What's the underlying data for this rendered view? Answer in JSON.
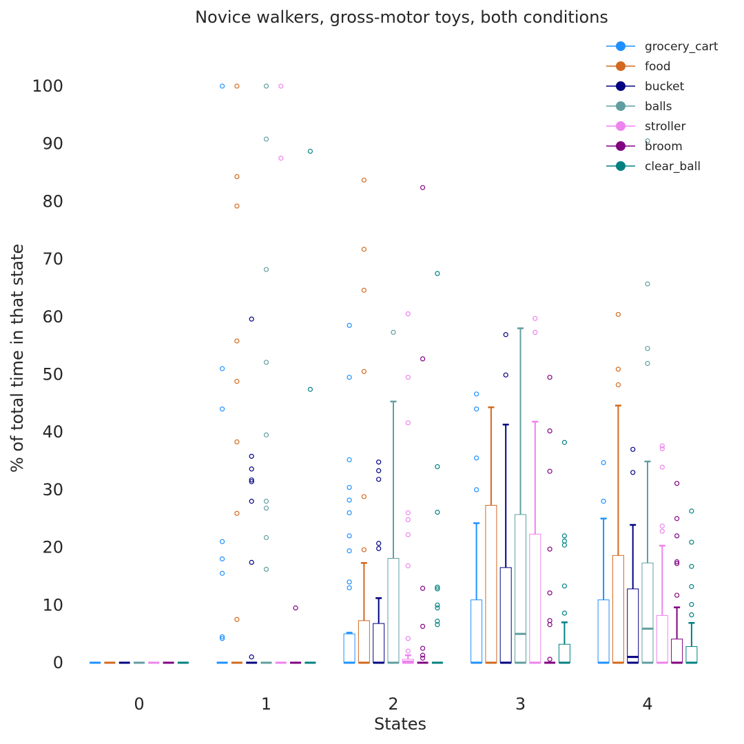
{
  "chart_data": {
    "type": "box",
    "title": "Novice walkers, gross-motor toys, both conditions",
    "xlabel": "States",
    "ylabel": "% of total time in that state",
    "categories": [
      "0",
      "1",
      "2",
      "3",
      "4"
    ],
    "ylim": [
      -5,
      107
    ],
    "yticks": [
      0,
      10,
      20,
      30,
      40,
      50,
      60,
      70,
      80,
      90,
      100
    ],
    "grid": false,
    "legend_position": "top-right",
    "series": [
      {
        "name": "grocery_cart",
        "color": "#1e90ff",
        "boxes": [
          {
            "q1": 0,
            "median": 0,
            "q3": 0,
            "whislo": 0,
            "whishi": 0,
            "fliers": []
          },
          {
            "q1": 0,
            "median": 0,
            "q3": 0,
            "whislo": 0,
            "whishi": 0,
            "fliers": [
              100,
              51,
              44,
              21,
              18,
              15.5,
              4.5,
              4.2
            ]
          },
          {
            "q1": 0,
            "median": 0,
            "q3": 5,
            "whislo": 0,
            "whishi": 5.2,
            "fliers": [
              58.5,
              49.5,
              35.2,
              30.4,
              28.2,
              26,
              22,
              19.4,
              14,
              13
            ]
          },
          {
            "q1": 0,
            "median": 0,
            "q3": 10.9,
            "whislo": 0,
            "whishi": 24.2,
            "fliers": [
              46.6,
              44,
              35.5,
              30
            ]
          },
          {
            "q1": 0,
            "median": 0,
            "q3": 10.9,
            "whislo": 0,
            "whishi": 25,
            "fliers": [
              34.7,
              28
            ]
          }
        ]
      },
      {
        "name": "food",
        "color": "#d2691e",
        "boxes": [
          {
            "q1": 0,
            "median": 0,
            "q3": 0,
            "whislo": 0,
            "whishi": 0,
            "fliers": []
          },
          {
            "q1": 0,
            "median": 0,
            "q3": 0,
            "whislo": 0,
            "whishi": 0,
            "fliers": [
              100,
              84.3,
              79.2,
              55.8,
              48.8,
              38.3,
              25.9,
              7.5
            ]
          },
          {
            "q1": 0,
            "median": 0,
            "q3": 7.3,
            "whislo": 0,
            "whishi": 17.3,
            "fliers": [
              83.7,
              71.7,
              64.6,
              50.5,
              28.8,
              19.6
            ]
          },
          {
            "q1": 0,
            "median": 0,
            "q3": 27.3,
            "whislo": 0,
            "whishi": 44.3,
            "fliers": []
          },
          {
            "q1": 0,
            "median": 0,
            "q3": 18.6,
            "whislo": 0,
            "whishi": 44.6,
            "fliers": [
              60.4,
              50.9,
              48.2
            ]
          }
        ]
      },
      {
        "name": "bucket",
        "color": "#000080",
        "boxes": [
          {
            "q1": 0,
            "median": 0,
            "q3": 0,
            "whislo": 0,
            "whishi": 0,
            "fliers": []
          },
          {
            "q1": 0,
            "median": 0,
            "q3": 0,
            "whislo": 0,
            "whishi": 0,
            "fliers": [
              59.6,
              35.8,
              33.6,
              31.7,
              31.4,
              28,
              17.4,
              1
            ]
          },
          {
            "q1": 0,
            "median": 0,
            "q3": 6.8,
            "whislo": 0,
            "whishi": 11.2,
            "fliers": [
              34.8,
              33.3,
              31.8,
              20.7,
              19.8
            ]
          },
          {
            "q1": 0,
            "median": 0,
            "q3": 16.5,
            "whislo": 0,
            "whishi": 41.3,
            "fliers": [
              56.9,
              49.9
            ]
          },
          {
            "q1": 0,
            "median": 1,
            "q3": 12.8,
            "whislo": 0,
            "whishi": 23.9,
            "fliers": [
              37,
              33
            ]
          }
        ]
      },
      {
        "name": "balls",
        "color": "#5f9ea0",
        "boxes": [
          {
            "q1": 0,
            "median": 0,
            "q3": 0,
            "whislo": 0,
            "whishi": 0,
            "fliers": []
          },
          {
            "q1": 0,
            "median": 0,
            "q3": 0,
            "whislo": 0,
            "whishi": 0,
            "fliers": [
              100,
              90.8,
              68.2,
              52.1,
              39.5,
              28,
              26.8,
              21.7,
              16.2
            ]
          },
          {
            "q1": 0,
            "median": 0,
            "q3": 18.1,
            "whislo": 0,
            "whishi": 45.3,
            "fliers": [
              57.3
            ]
          },
          {
            "q1": 0,
            "median": 5,
            "q3": 25.7,
            "whislo": 0,
            "whishi": 58,
            "fliers": []
          },
          {
            "q1": 0,
            "median": 5.9,
            "q3": 17.3,
            "whislo": 0,
            "whishi": 34.9,
            "fliers": [
              65.7,
              54.5,
              51.9,
              90.5
            ]
          }
        ]
      },
      {
        "name": "stroller",
        "color": "#ee82ee",
        "boxes": [
          {
            "q1": 0,
            "median": 0,
            "q3": 0,
            "whislo": 0,
            "whishi": 0,
            "fliers": []
          },
          {
            "q1": 0,
            "median": 0,
            "q3": 0,
            "whislo": 0,
            "whishi": 0,
            "fliers": [
              100,
              87.5
            ]
          },
          {
            "q1": 0,
            "median": 0.2,
            "q3": 0.6,
            "whislo": 0,
            "whishi": 1.3,
            "fliers": [
              60.5,
              49.5,
              41.6,
              26,
              24.8,
              22.2,
              16.8,
              4.2,
              2
            ]
          },
          {
            "q1": 0,
            "median": 0,
            "q3": 22.3,
            "whislo": 0,
            "whishi": 41.8,
            "fliers": [
              59.7,
              57.3
            ]
          },
          {
            "q1": 0,
            "median": 0,
            "q3": 8.2,
            "whislo": 0,
            "whishi": 20.3,
            "fliers": [
              37.6,
              37.1,
              33.9,
              23.7,
              22.8
            ]
          }
        ]
      },
      {
        "name": "broom",
        "color": "#800080",
        "boxes": [
          {
            "q1": 0,
            "median": 0,
            "q3": 0,
            "whislo": 0,
            "whishi": 0,
            "fliers": []
          },
          {
            "q1": 0,
            "median": 0,
            "q3": 0,
            "whislo": 0,
            "whishi": 0,
            "fliers": [
              9.5
            ]
          },
          {
            "q1": 0,
            "median": 0,
            "q3": 0,
            "whislo": 0,
            "whishi": 0,
            "fliers": [
              82.4,
              52.7,
              12.9,
              6.3,
              2.5,
              1.3,
              0.8
            ]
          },
          {
            "q1": 0,
            "median": 0,
            "q3": 0,
            "whislo": 0,
            "whishi": 0,
            "fliers": [
              49.5,
              40.2,
              33.2,
              19.7,
              12.1,
              7.3,
              6.6,
              0.6
            ]
          },
          {
            "q1": 0,
            "median": 0,
            "q3": 4.1,
            "whislo": 0,
            "whishi": 9.6,
            "fliers": [
              31.1,
              25,
              22,
              17.5,
              17.2,
              11.7
            ]
          }
        ]
      },
      {
        "name": "clear_ball",
        "color": "#008080",
        "boxes": [
          {
            "q1": 0,
            "median": 0,
            "q3": 0,
            "whislo": 0,
            "whishi": 0,
            "fliers": []
          },
          {
            "q1": 0,
            "median": 0,
            "q3": 0,
            "whislo": 0,
            "whishi": 0,
            "fliers": [
              88.7,
              47.4
            ]
          },
          {
            "q1": 0,
            "median": 0,
            "q3": 0,
            "whislo": 0,
            "whishi": 0,
            "fliers": [
              67.5,
              34,
              26.1,
              13.1,
              12.8,
              10,
              9.5,
              7.2,
              6.6
            ]
          },
          {
            "q1": 0,
            "median": 0,
            "q3": 3.2,
            "whislo": 0,
            "whishi": 7,
            "fliers": [
              38.2,
              22,
              21.1,
              20.4,
              13.3,
              8.6
            ]
          },
          {
            "q1": 0,
            "median": 0,
            "q3": 2.8,
            "whislo": 0,
            "whishi": 6.9,
            "fliers": [
              26.3,
              20.9,
              16.7,
              13.2,
              10.1,
              8.3
            ]
          }
        ]
      }
    ]
  }
}
